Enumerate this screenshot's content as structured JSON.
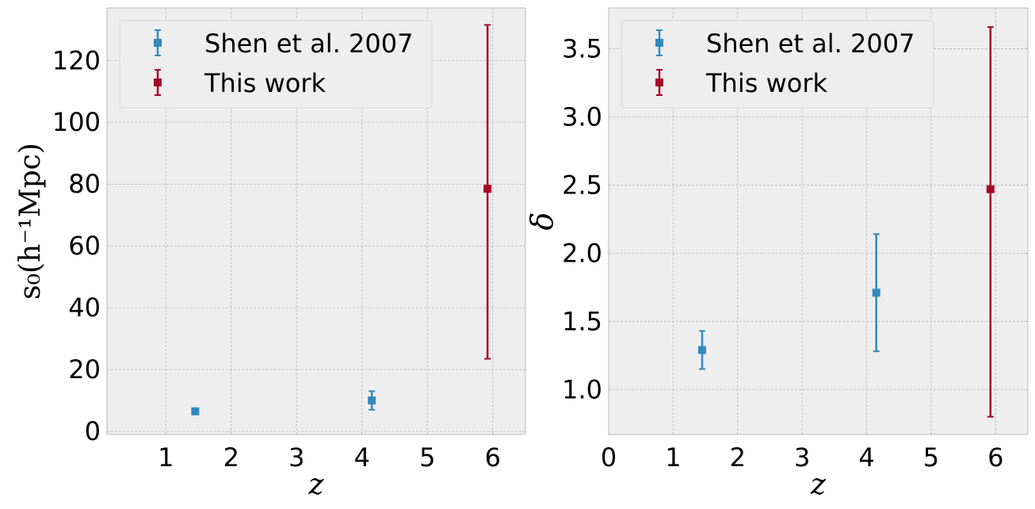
{
  "chart_data": [
    {
      "type": "scatter",
      "title": "",
      "xlabel": "z",
      "ylabel": "s₀(h⁻¹Mpc)",
      "xlim": [
        0.1,
        6.5
      ],
      "ylim": [
        -1,
        137
      ],
      "xticks": [
        1,
        2,
        3,
        4,
        5,
        6
      ],
      "yticks": [
        0,
        20,
        40,
        60,
        80,
        100,
        120
      ],
      "grid": true,
      "legend": "top-left",
      "series": [
        {
          "name": "Shen et al. 2007",
          "color": "#348abd",
          "points": [
            {
              "x": 1.45,
              "y": 6.5,
              "yerr": 0.8
            },
            {
              "x": 4.15,
              "y": 10.0,
              "yerr": 3.0
            }
          ]
        },
        {
          "name": "This work",
          "color": "#a60628",
          "points": [
            {
              "x": 5.92,
              "y": 78.5,
              "yerr_low": 55.0,
              "yerr_high": 53.0
            }
          ]
        }
      ]
    },
    {
      "type": "scatter",
      "title": "",
      "xlabel": "z",
      "ylabel": "δ",
      "xlim": [
        0.0,
        6.5
      ],
      "ylim": [
        0.67,
        3.8
      ],
      "xticks": [
        0,
        1,
        2,
        3,
        4,
        5,
        6
      ],
      "yticks": [
        1.0,
        1.5,
        2.0,
        2.5,
        3.0,
        3.5
      ],
      "grid": true,
      "legend": "top-left",
      "series": [
        {
          "name": "Shen et al. 2007",
          "color": "#348abd",
          "points": [
            {
              "x": 1.45,
              "y": 1.29,
              "yerr": 0.14
            },
            {
              "x": 4.15,
              "y": 1.71,
              "yerr_low": 0.43,
              "yerr_high": 0.43
            }
          ]
        },
        {
          "name": "This work",
          "color": "#a60628",
          "points": [
            {
              "x": 5.92,
              "y": 2.47,
              "yerr_low": 1.67,
              "yerr_high": 1.19
            }
          ]
        }
      ]
    }
  ]
}
